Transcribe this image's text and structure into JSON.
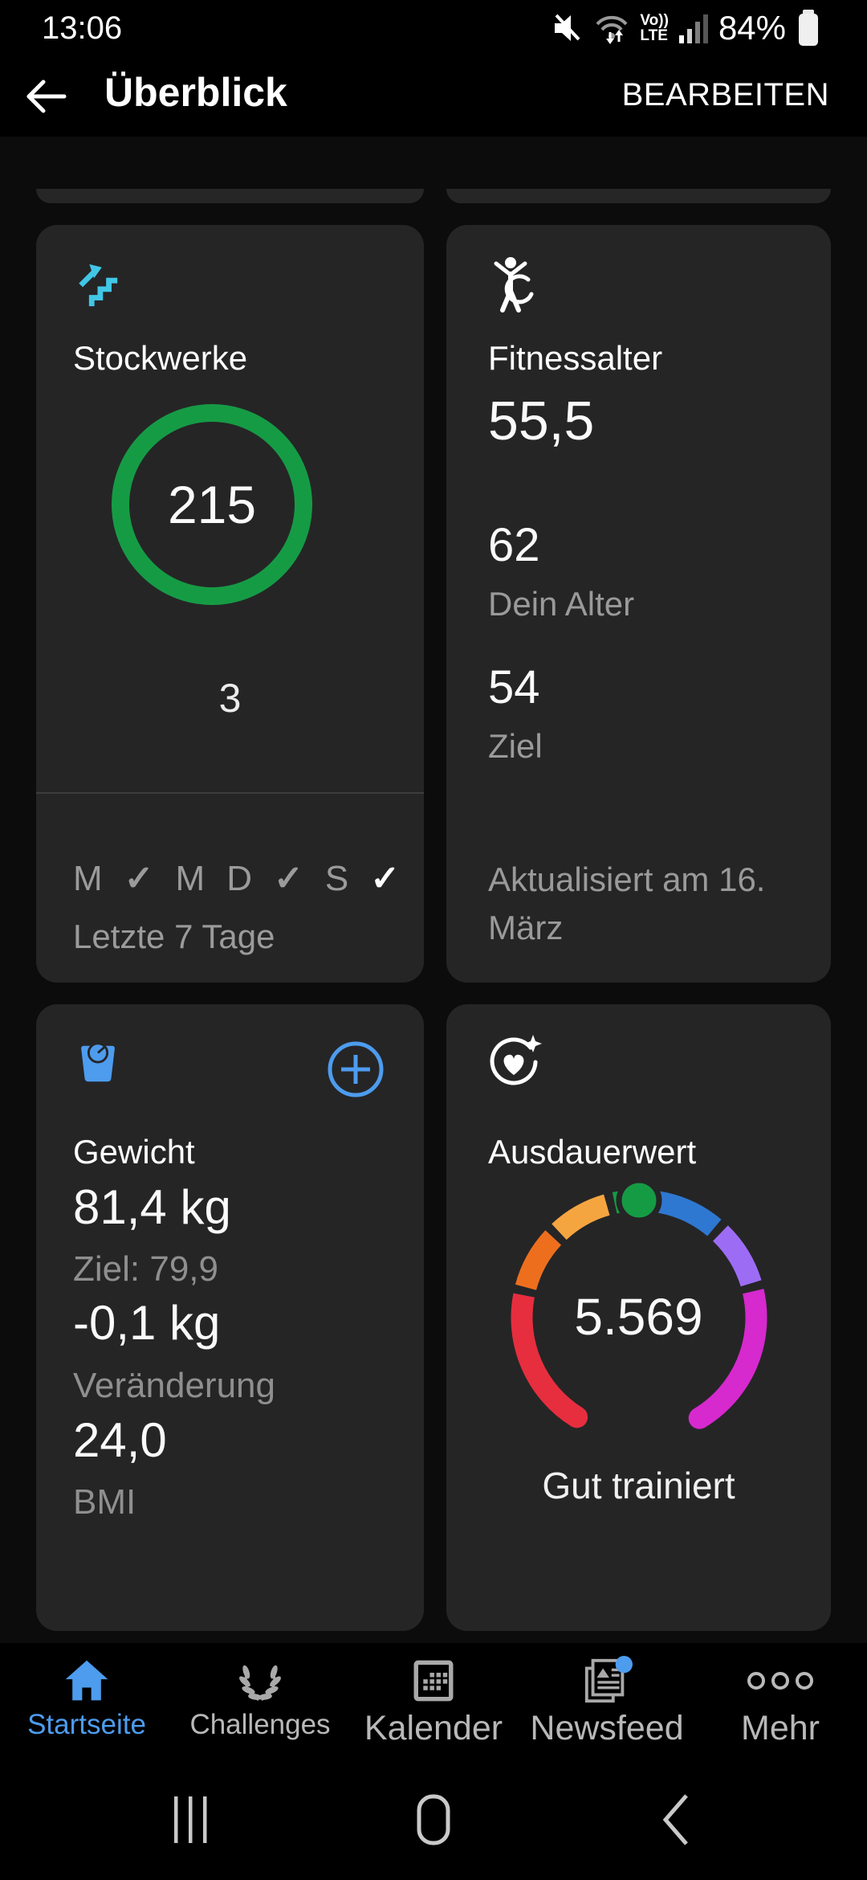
{
  "status_bar": {
    "time": "13:06",
    "battery_percent": "84%",
    "volte_line1": "Vo))",
    "volte_line2": "LTE"
  },
  "header": {
    "title": "Überblick",
    "action": "BEARBEITEN"
  },
  "colors": {
    "accent_blue": "#4d9cee",
    "ring_green": "#169b45",
    "stairs_cyan": "#41c7e6",
    "card_bg": "#252526"
  },
  "cards": {
    "floors": {
      "title": "Stockwerke",
      "ring_value": "215",
      "below_ring": "3",
      "days": [
        {
          "text": "M",
          "kind": "letter"
        },
        {
          "text": "✓",
          "kind": "check"
        },
        {
          "text": "M",
          "kind": "letter"
        },
        {
          "text": "D",
          "kind": "letter"
        },
        {
          "text": "✓",
          "kind": "check"
        },
        {
          "text": "S",
          "kind": "letter"
        },
        {
          "text": "✓",
          "kind": "check-strong"
        }
      ],
      "period": "Letzte 7 Tage"
    },
    "fitness_age": {
      "title": "Fitnessalter",
      "primary": "55,5",
      "current_value": "62",
      "current_label": "Dein Alter",
      "goal_value": "54",
      "goal_label": "Ziel",
      "updated": "Aktualisiert am 16. März"
    },
    "weight": {
      "title": "Gewicht",
      "current": "81,4 kg",
      "goal": "Ziel: 79,9",
      "change": "-0,1 kg",
      "change_label": "Veränderung",
      "bmi": "24,0",
      "bmi_label": "BMI"
    },
    "endurance": {
      "title": "Ausdauerwert",
      "value": "5.569",
      "status": "Gut trainiert"
    }
  },
  "chart_data": [
    {
      "type": "donut",
      "title": "Stockwerke",
      "value": 215,
      "secondary_value": 3,
      "ring_color": "#169b45",
      "fraction_filled": 1.0
    },
    {
      "type": "gauge",
      "title": "Ausdauerwert",
      "value": 5569,
      "value_display": "5.569",
      "label": "Gut trainiert",
      "marker": {
        "angle_deg": 0,
        "color": "#169b45"
      },
      "segments": [
        {
          "from_deg": 77,
          "to_deg": 149,
          "color": "#d629ce",
          "round_caps": [
            "end"
          ]
        },
        {
          "from_deg": 212,
          "to_deg": 281,
          "color": "#e62e3e",
          "round_caps": [
            "start"
          ]
        },
        {
          "from_deg": 9,
          "to_deg": 40,
          "color": "#2e78d2",
          "round_caps": []
        },
        {
          "from_deg": 44,
          "to_deg": 73,
          "color": "#9d6cf5",
          "round_caps": []
        },
        {
          "from_deg": 285,
          "to_deg": 313,
          "color": "#ed6f1e",
          "round_caps": []
        },
        {
          "from_deg": 317,
          "to_deg": 344,
          "color": "#f5a540",
          "round_caps": []
        },
        {
          "from_deg": 348,
          "to_deg": 353,
          "color": "#169b45",
          "round_caps": []
        }
      ]
    }
  ],
  "tab_bar": {
    "items": [
      {
        "label": "Startseite"
      },
      {
        "label": "Challenges"
      },
      {
        "label": "Kalender"
      },
      {
        "label": "Newsfeed"
      },
      {
        "label": "Mehr"
      }
    ]
  }
}
